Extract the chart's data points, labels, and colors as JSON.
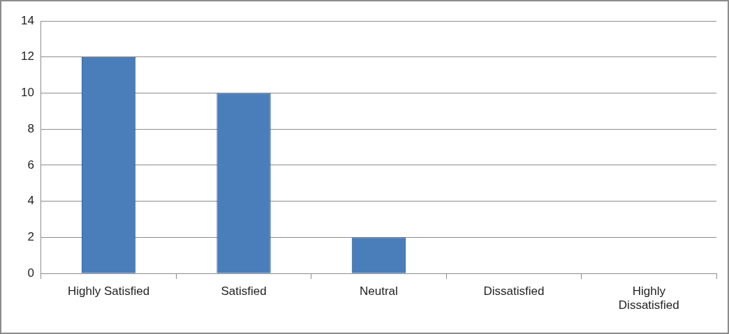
{
  "chart_data": {
    "type": "bar",
    "categories": [
      "Highly Satisfied",
      "Satisfied",
      "Neutral",
      "Dissatisfied",
      "Highly Dissatisfied"
    ],
    "values": [
      12,
      10,
      2,
      0,
      0
    ],
    "color": "#4a7ebb",
    "ylim": [
      0,
      14
    ],
    "yticks": [
      0,
      2,
      4,
      6,
      8,
      10,
      12,
      14
    ],
    "grid": "y",
    "legend": false
  }
}
